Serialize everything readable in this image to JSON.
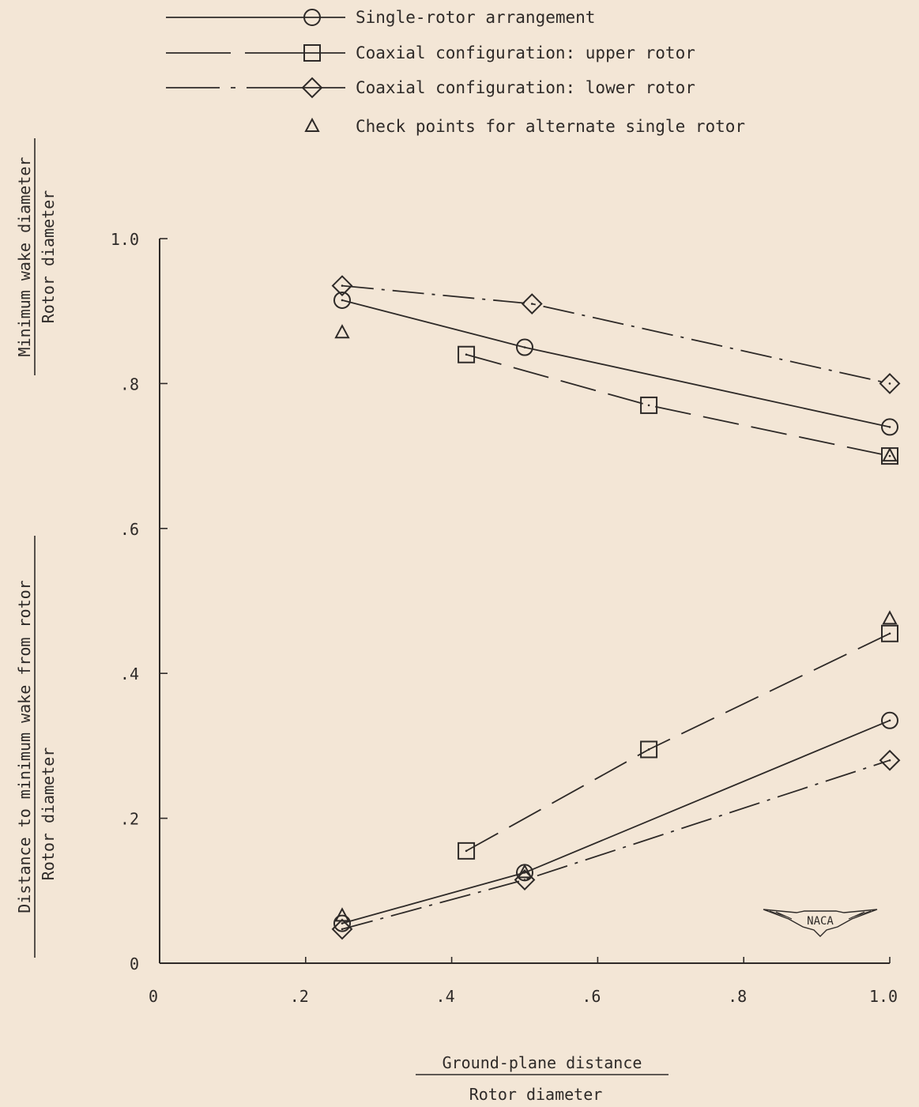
{
  "chart_data": {
    "type": "line",
    "xlabel_numerator": "Ground-plane distance",
    "xlabel_denominator": "Rotor diameter",
    "ylabel_upper_numerator": "Minimum wake diameter",
    "ylabel_upper_denominator": "Rotor diameter",
    "ylabel_lower_numerator": "Distance to minimum wake from rotor",
    "ylabel_lower_denominator": "Rotor diameter",
    "xlim": [
      0,
      1.0
    ],
    "ylim": [
      0,
      1.0
    ],
    "xticks": [
      {
        "value": 0,
        "label": "0"
      },
      {
        "value": 0.2,
        "label": ".2"
      },
      {
        "value": 0.4,
        "label": ".4"
      },
      {
        "value": 0.6,
        "label": ".6"
      },
      {
        "value": 0.8,
        "label": ".8"
      },
      {
        "value": 1.0,
        "label": "1.0"
      }
    ],
    "yticks": [
      {
        "value": 0,
        "label": "0"
      },
      {
        "value": 0.2,
        "label": ".2"
      },
      {
        "value": 0.4,
        "label": ".4"
      },
      {
        "value": 0.6,
        "label": ".6"
      },
      {
        "value": 0.8,
        "label": ".8"
      },
      {
        "value": 1.0,
        "label": "1.0"
      }
    ],
    "grid": false,
    "legend_position": "top",
    "logo_text": "NACA",
    "legend": [
      {
        "label": "Single-rotor arrangement",
        "marker": "circle",
        "dash": "solid"
      },
      {
        "label": "Coaxial configuration:  upper rotor",
        "marker": "square",
        "dash": "long-dash"
      },
      {
        "label": "Coaxial configuration:  lower rotor",
        "marker": "diamond",
        "dash": "dash-dot"
      },
      {
        "label": "Check points for alternate single rotor",
        "marker": "triangle",
        "dash": "none"
      }
    ],
    "series": [
      {
        "marker": "circle",
        "dash": "solid",
        "x": [
          0.25,
          0.5,
          1.0
        ],
        "y": [
          0.915,
          0.85,
          0.74
        ]
      },
      {
        "marker": "square",
        "dash": "long-dash",
        "x": [
          0.42,
          0.67,
          1.0
        ],
        "y": [
          0.84,
          0.77,
          0.7
        ]
      },
      {
        "marker": "diamond",
        "dash": "dash-dot",
        "x": [
          0.25,
          0.51,
          1.0
        ],
        "y": [
          0.935,
          0.91,
          0.8
        ]
      },
      {
        "marker": "triangle",
        "dash": "none",
        "x": [
          0.25,
          1.0
        ],
        "y": [
          0.87,
          0.7
        ]
      },
      {
        "marker": "circle",
        "dash": "solid",
        "x": [
          0.25,
          0.5,
          1.0
        ],
        "y": [
          0.055,
          0.125,
          0.335
        ]
      },
      {
        "marker": "square",
        "dash": "long-dash",
        "x": [
          0.42,
          0.67,
          1.0
        ],
        "y": [
          0.155,
          0.295,
          0.455
        ]
      },
      {
        "marker": "diamond",
        "dash": "dash-dot",
        "x": [
          0.25,
          0.5,
          1.0
        ],
        "y": [
          0.047,
          0.115,
          0.28
        ]
      },
      {
        "marker": "triangle",
        "dash": "none",
        "x": [
          0.25,
          0.5,
          1.0
        ],
        "y": [
          0.065,
          0.125,
          0.475
        ]
      }
    ]
  }
}
